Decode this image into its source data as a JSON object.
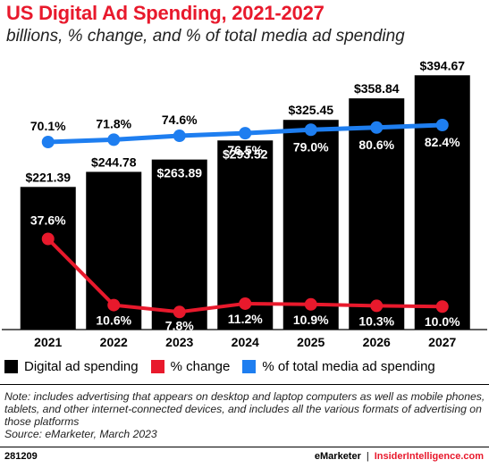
{
  "header": {
    "title": "US Digital Ad Spending, 2021-2027",
    "subtitle": "billions, % change, and % of total media ad spending"
  },
  "colors": {
    "bar": "#000000",
    "change_line": "#e8192c",
    "share_line": "#1e7ef0",
    "title": "#e8192c"
  },
  "chart_data": {
    "type": "bar",
    "categories": [
      "2021",
      "2022",
      "2023",
      "2024",
      "2025",
      "2026",
      "2027"
    ],
    "series": [
      {
        "name": "Digital ad spending",
        "type": "bar",
        "values": [
          221.39,
          244.78,
          263.89,
          293.52,
          325.45,
          358.84,
          394.67
        ],
        "labels": [
          "$221.39",
          "$244.78",
          "$263.89",
          "$293.52",
          "$325.45",
          "$358.84",
          "$394.67"
        ]
      },
      {
        "name": "% change",
        "type": "line",
        "values": [
          37.6,
          10.6,
          7.8,
          11.2,
          10.9,
          10.3,
          10.0
        ],
        "labels": [
          "37.6%",
          "10.6%",
          "7.8%",
          "11.2%",
          "10.9%",
          "10.3%",
          "10.0%"
        ]
      },
      {
        "name": "% of total media ad spending",
        "type": "line",
        "values": [
          70.1,
          71.8,
          74.6,
          76.5,
          79.0,
          80.6,
          82.4
        ],
        "labels": [
          "70.1%",
          "71.8%",
          "74.6%",
          "76.5%",
          "79.0%",
          "80.6%",
          "82.4%"
        ]
      }
    ],
    "legend_position": "bottom-left",
    "grid": false
  },
  "note": "Note: includes advertising that appears on desktop and laptop computers as well as mobile phones, tablets, and other internet-connected devices, and includes all the various formats of advertising on those platforms",
  "source": "Source: eMarketer, March 2023",
  "footer": {
    "chart_id": "281209",
    "brand1": "eMarketer",
    "separator": "|",
    "brand2": "InsiderIntelligence.com"
  }
}
